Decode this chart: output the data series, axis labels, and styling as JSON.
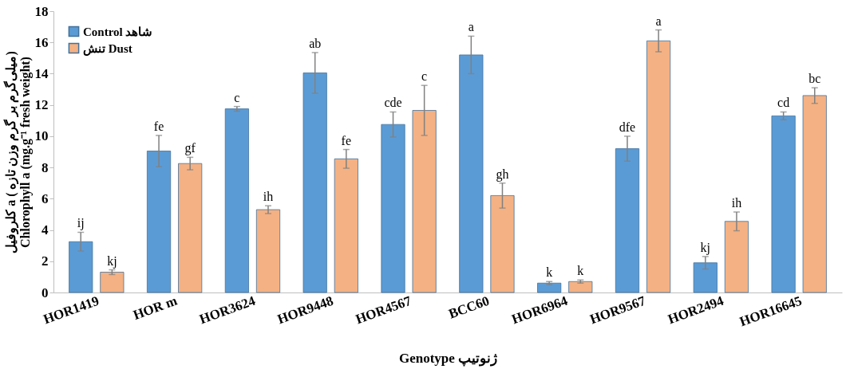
{
  "chart_data": {
    "type": "bar",
    "xlabel": "Genotype      ژنوتیپ",
    "ylabel": "کلروفیل a ( میلی‌گرم بر گرم وزن تازه)\nChlorophyll a (mg.g⁻¹ fresh weight)",
    "categories": [
      "HOR1419",
      "HOR m",
      "HOR3624",
      "HOR9448",
      "HOR4567",
      "BCC60",
      "HOR6964",
      "HOR9567",
      "HOR2494",
      "HOR16645"
    ],
    "series": [
      {
        "name": "Control شاهد",
        "color": "#5b9bd5",
        "values": [
          3.25,
          9.05,
          11.75,
          14.05,
          10.75,
          15.2,
          0.6,
          9.2,
          1.9,
          11.3
        ],
        "errors": [
          0.6,
          1.0,
          0.15,
          1.3,
          0.8,
          1.2,
          0.1,
          0.8,
          0.4,
          0.25
        ],
        "value_labels": [
          "ij",
          "fe",
          "c",
          "ab",
          "cde",
          "a",
          "k",
          "dfe",
          "kj",
          "cd"
        ]
      },
      {
        "name": "تنش Dust",
        "color": "#f4b183",
        "values": [
          1.3,
          8.25,
          5.3,
          8.55,
          11.65,
          6.2,
          0.7,
          16.1,
          4.55,
          12.6
        ],
        "errors": [
          0.15,
          0.4,
          0.25,
          0.6,
          1.6,
          0.8,
          0.1,
          0.7,
          0.6,
          0.5
        ],
        "value_labels": [
          "kj",
          "gf",
          "ih",
          "fe",
          "c",
          "gh",
          "k",
          "a",
          "ih",
          "bc"
        ]
      }
    ],
    "ylim": [
      0,
      18
    ],
    "yticks": [
      0,
      2,
      4,
      6,
      8,
      10,
      12,
      14,
      16,
      18
    ],
    "grid": false,
    "legend": "top left"
  }
}
